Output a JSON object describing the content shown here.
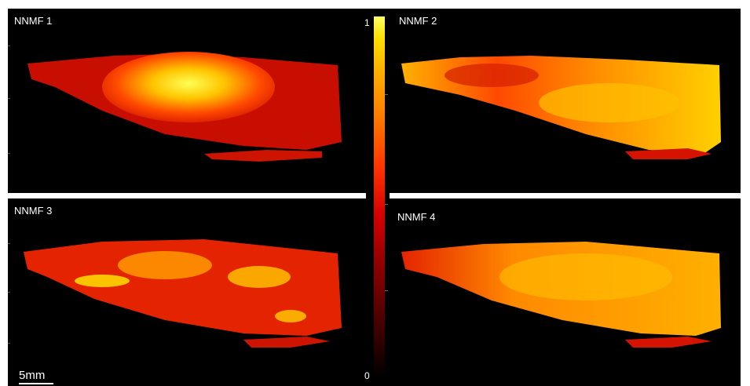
{
  "panels": [
    {
      "label": "NNMF 1"
    },
    {
      "label": "NNMF 2"
    },
    {
      "label": "NNMF 3"
    },
    {
      "label": "NNMF 4"
    }
  ],
  "colorbar": {
    "max_label": "1",
    "min_label": "0"
  },
  "scalebar": {
    "label": "5mm"
  },
  "colors": {
    "background": "#000000",
    "low": "#8a0000",
    "mid": "#ff3300",
    "high": "#ffff66"
  }
}
